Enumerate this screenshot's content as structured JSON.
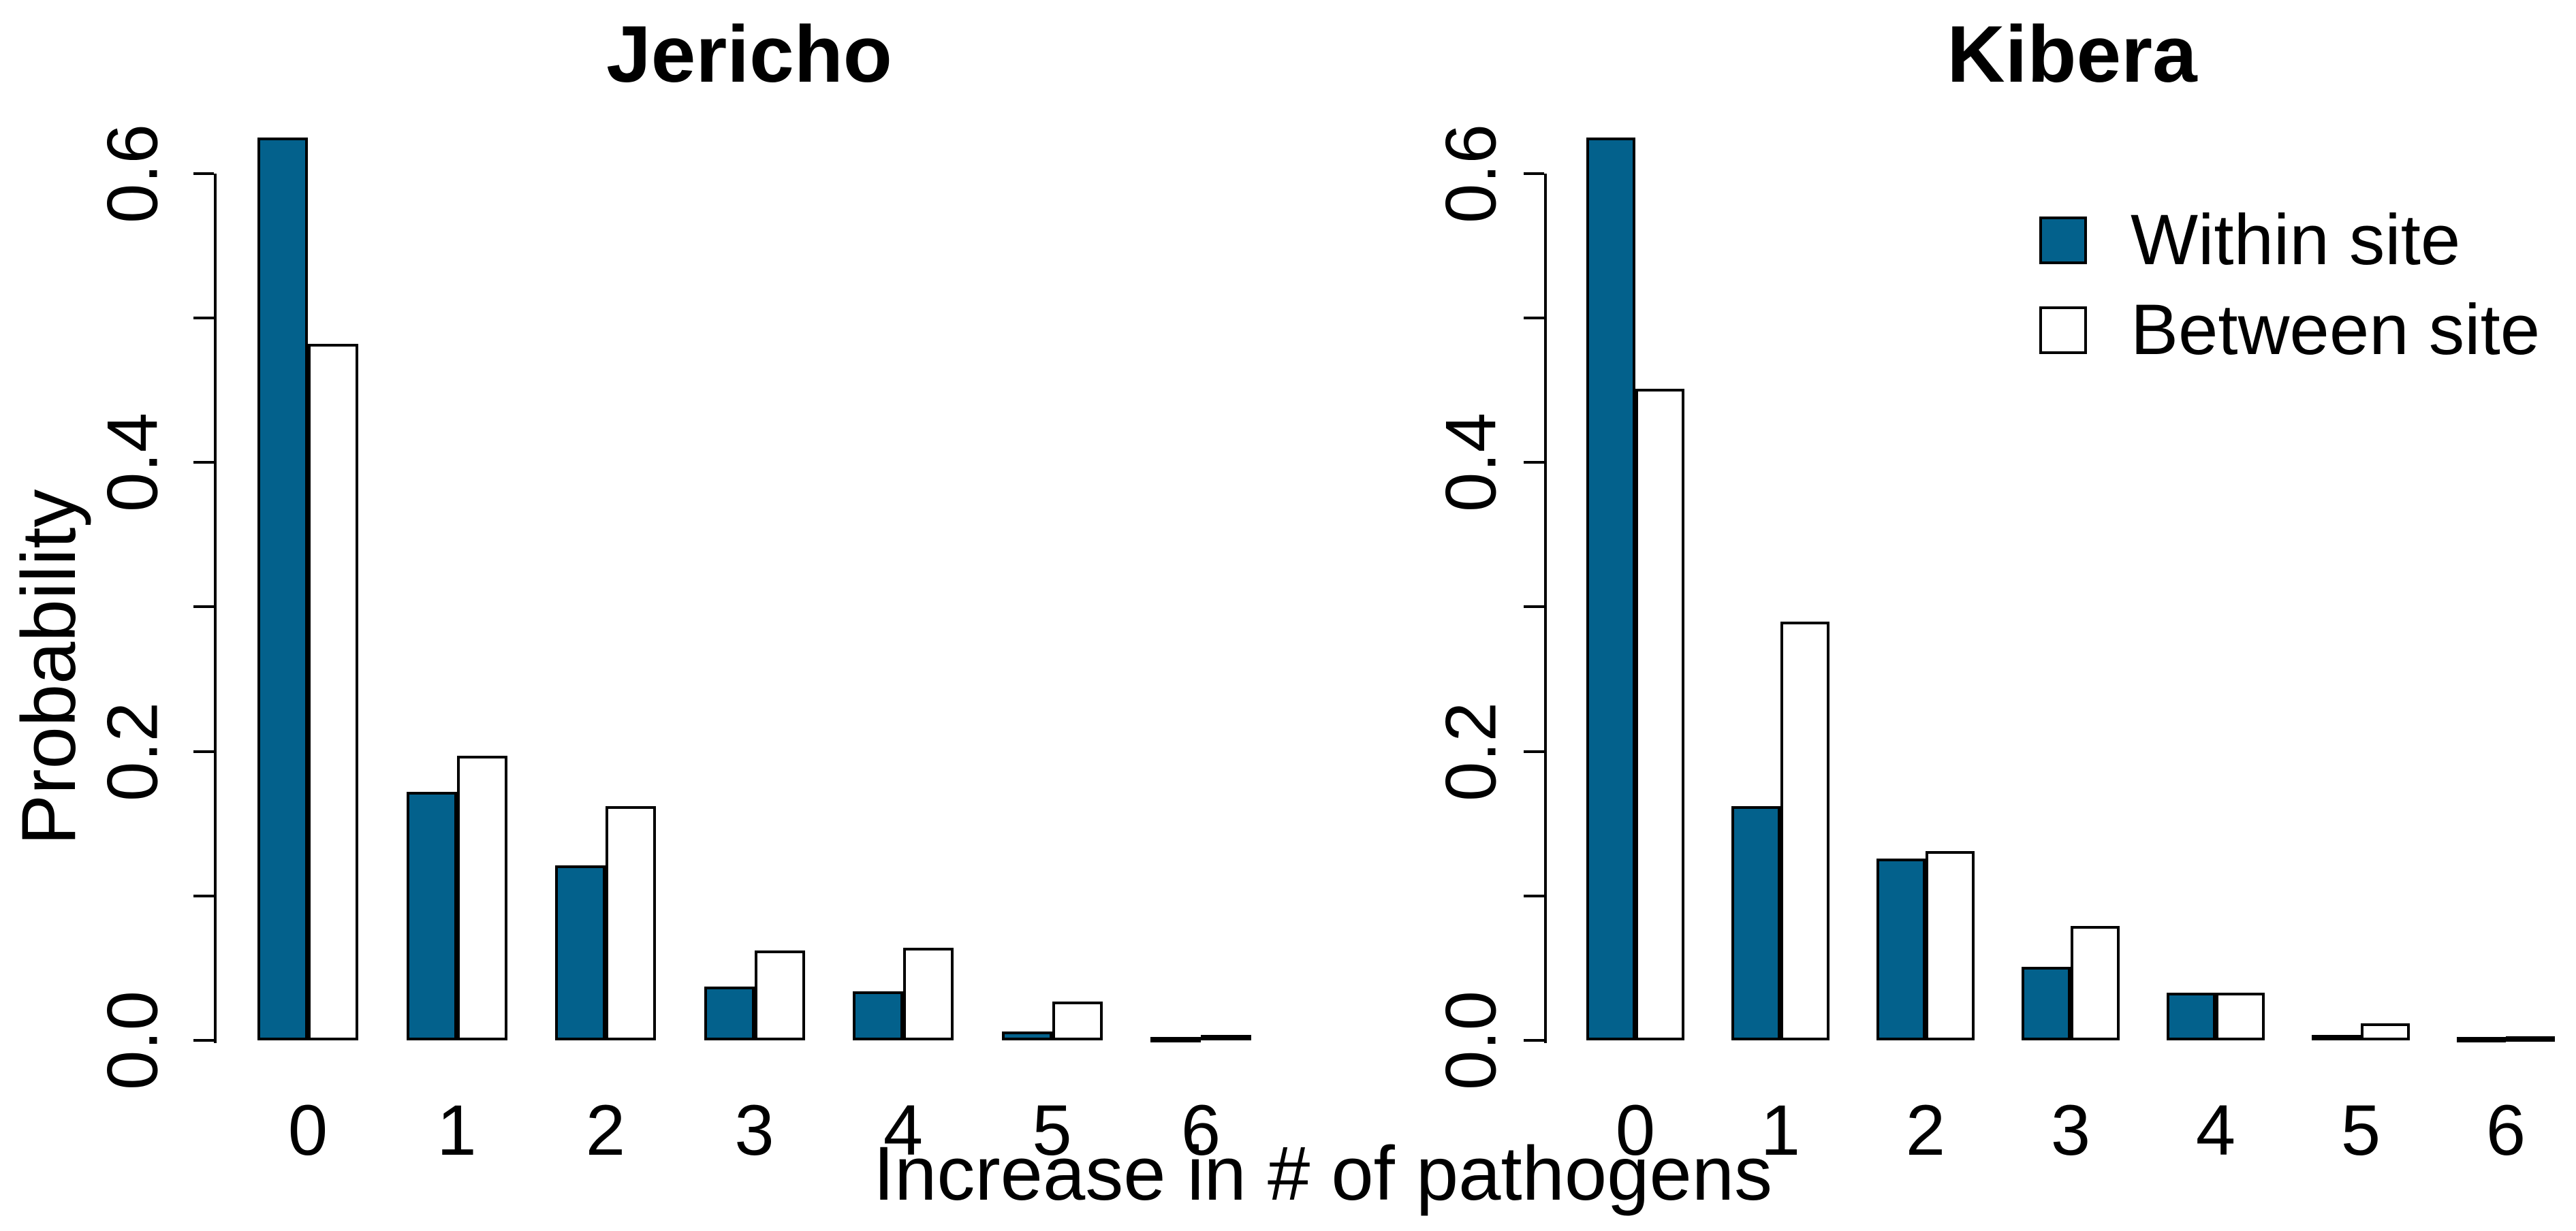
{
  "figure": {
    "background": "#ffffff",
    "x_axis_label": "Increase in # of pathogens",
    "y_axis_label": "Probability"
  },
  "colors": {
    "within": "#03618C",
    "between": "#FFFFFF",
    "outline": "#000000",
    "text": "#000000"
  },
  "legend": {
    "position": "top-right-of-kibera-panel",
    "items": [
      {
        "label": "Within site",
        "swatch": "within"
      },
      {
        "label": "Between site",
        "swatch": "between"
      }
    ]
  },
  "chart_data": [
    {
      "type": "bar",
      "title": "Jericho",
      "categories": [
        "0",
        "1",
        "2",
        "3",
        "4",
        "5",
        "6"
      ],
      "series": [
        {
          "name": "Within site",
          "values": [
            0.625,
            0.172,
            0.121,
            0.037,
            0.034,
            0.006,
            0.002
          ]
        },
        {
          "name": "Between site",
          "values": [
            0.482,
            0.197,
            0.162,
            0.062,
            0.064,
            0.027,
            0.004
          ]
        }
      ],
      "xlabel": "Increase in # of pathogens",
      "ylabel": "Probability",
      "ylim": [
        0,
        0.6
      ],
      "yticks": [
        0,
        0.1,
        0.2,
        0.3,
        0.4,
        0.5,
        0.6
      ],
      "ytick_labels": [
        "0.0",
        "",
        "0.2",
        "",
        "0.4",
        "",
        "0.6"
      ],
      "grid": false,
      "legend_position": "none"
    },
    {
      "type": "bar",
      "title": "Kibera",
      "categories": [
        "0",
        "1",
        "2",
        "3",
        "4",
        "5",
        "6"
      ],
      "series": [
        {
          "name": "Within site",
          "values": [
            0.625,
            0.162,
            0.126,
            0.051,
            0.033,
            0.004,
            0.0015
          ]
        },
        {
          "name": "Between site",
          "values": [
            0.451,
            0.29,
            0.131,
            0.079,
            0.033,
            0.012,
            0.003
          ]
        }
      ],
      "xlabel": "Increase in # of pathogens",
      "ylabel": "Probability",
      "ylim": [
        0,
        0.6
      ],
      "yticks": [
        0,
        0.1,
        0.2,
        0.3,
        0.4,
        0.5,
        0.6
      ],
      "ytick_labels": [
        "0.0",
        "",
        "0.2",
        "",
        "0.4",
        "",
        "0.6"
      ],
      "grid": false,
      "legend_position": "top-right"
    }
  ]
}
